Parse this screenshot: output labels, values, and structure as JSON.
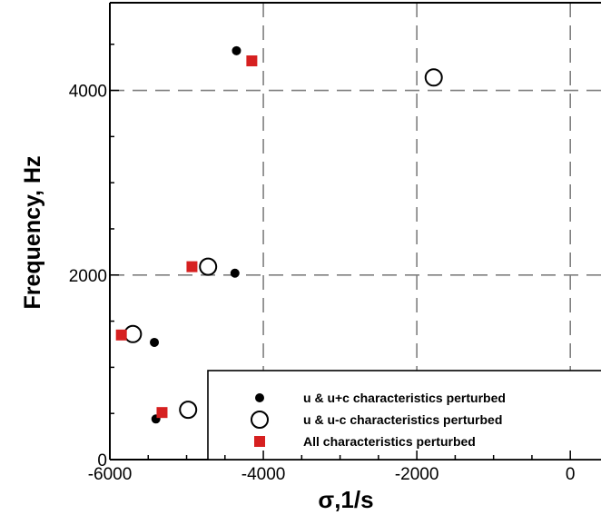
{
  "chart_data": {
    "type": "scatter",
    "xlabel": "σ,1/s",
    "ylabel": "Frequency, Hz",
    "xlim": [
      -6000,
      400
    ],
    "ylim": [
      0,
      4950
    ],
    "xticks": [
      -6000,
      -4000,
      -2000,
      0
    ],
    "xtick_labels": [
      "-6000",
      "-4000",
      "-2000",
      "0"
    ],
    "yticks": [
      0,
      2000,
      4000
    ],
    "ytick_labels": [
      "0",
      "2000",
      "4000"
    ],
    "grid": "dashed",
    "legend_position": "bottom-right",
    "colors": {
      "axis": "#000000",
      "grid": "#7f7f7f",
      "red": "#d62020",
      "black": "#000000"
    },
    "series": [
      {
        "name": "u & u+c characteristics perturbed",
        "marker": "filled-circle",
        "points": [
          [
            -4350,
            4430
          ],
          [
            -4370,
            2020
          ],
          [
            -5420,
            1270
          ],
          [
            -5400,
            440
          ]
        ]
      },
      {
        "name": "u & u-c characteristics perturbed",
        "marker": "open-circle",
        "points": [
          [
            -1780,
            4140
          ],
          [
            -4720,
            2090
          ],
          [
            -5700,
            1360
          ],
          [
            -4980,
            540
          ]
        ]
      },
      {
        "name": "All characteristics perturbed",
        "marker": "red-square",
        "points": [
          [
            -4150,
            4320
          ],
          [
            -4930,
            2090
          ],
          [
            -5850,
            1350
          ],
          [
            -5320,
            510
          ]
        ]
      }
    ]
  }
}
